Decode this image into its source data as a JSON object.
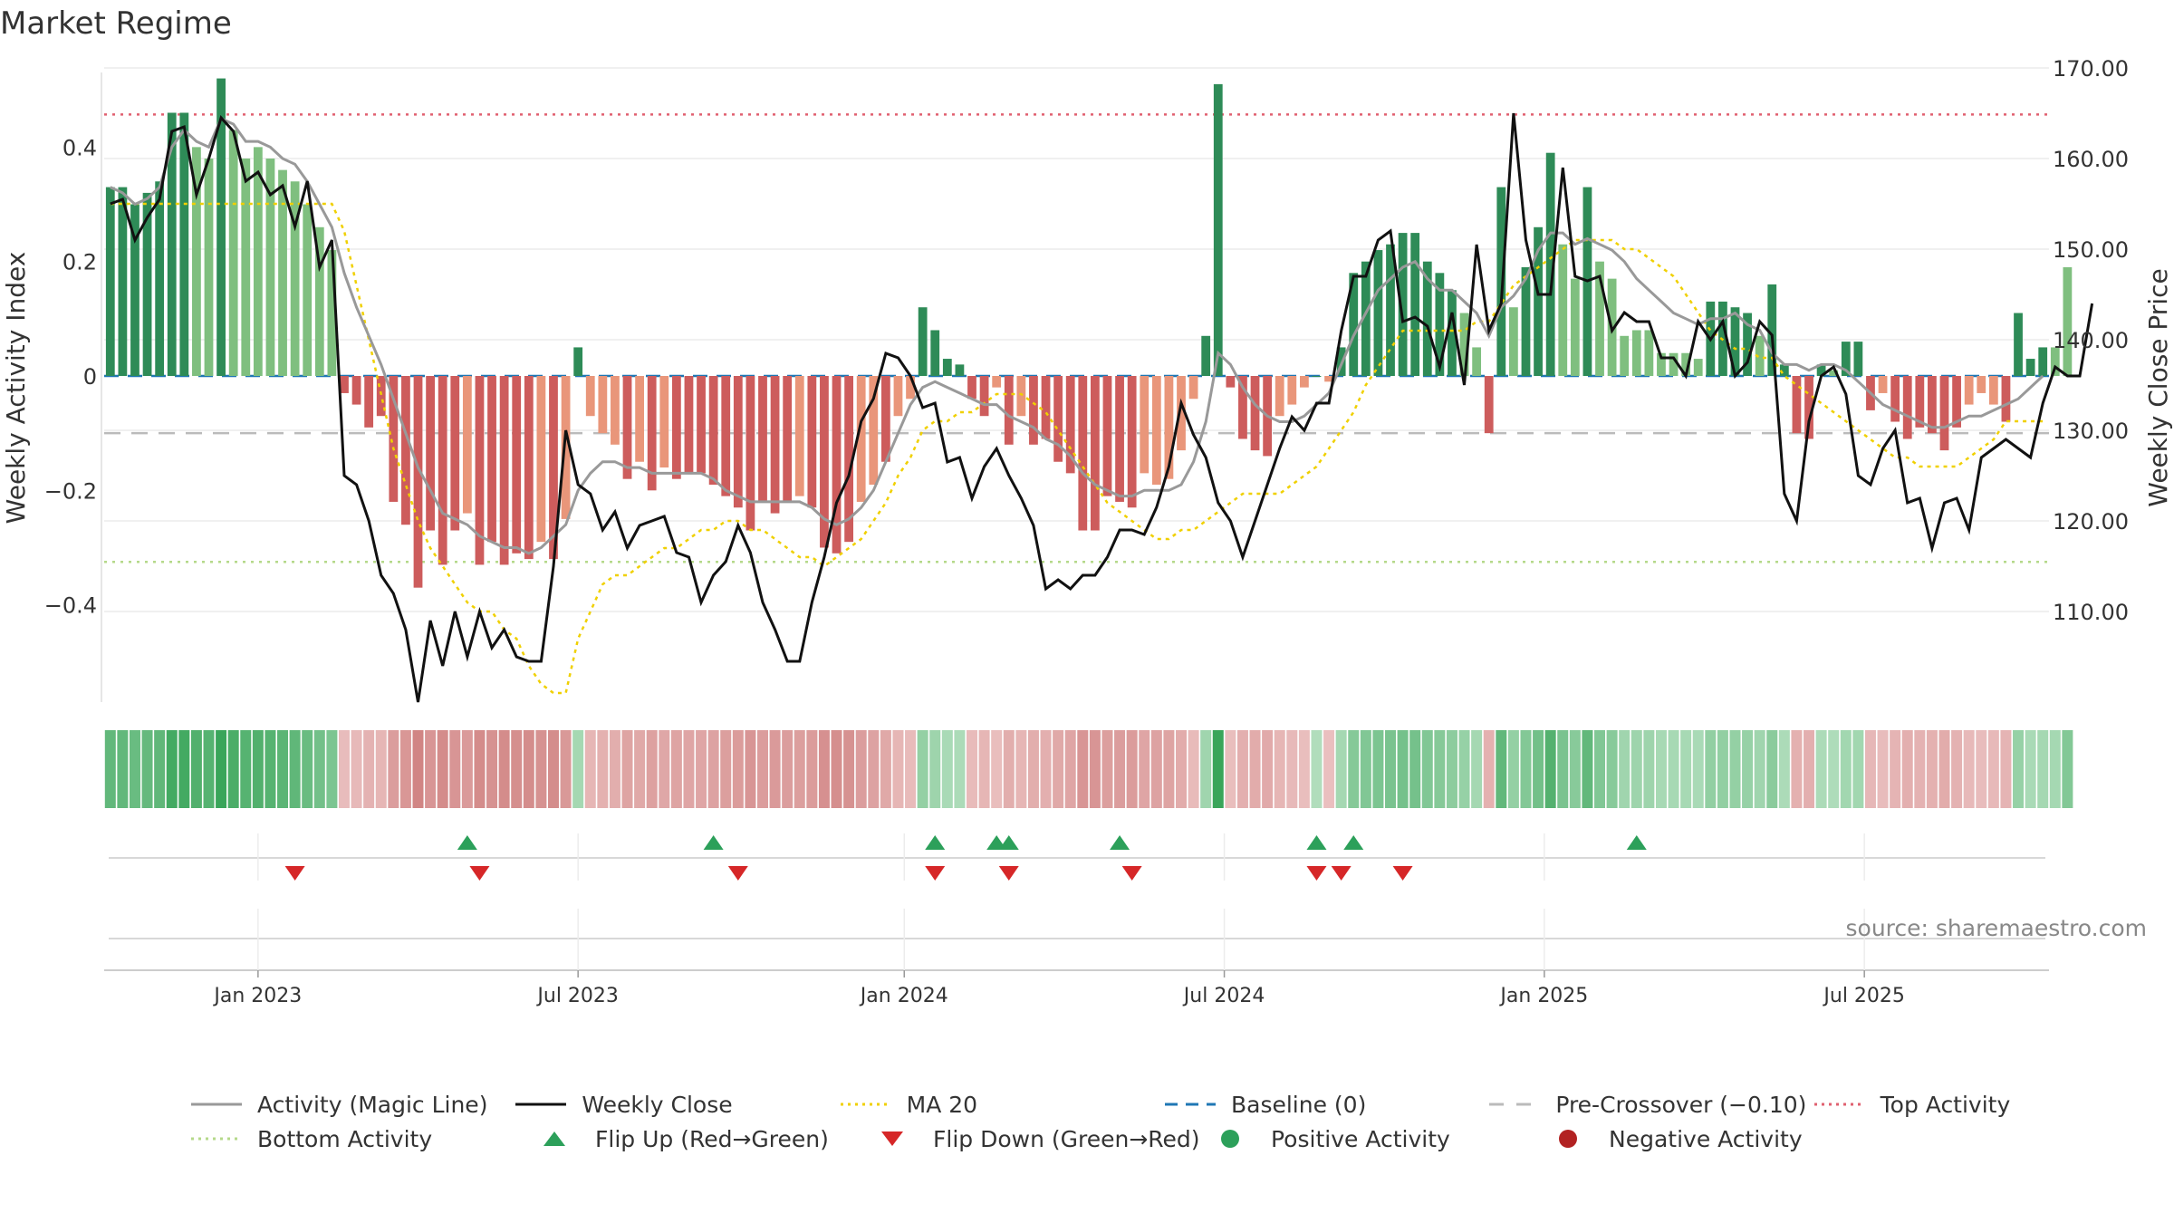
{
  "title": "Market Regime",
  "source": "source: sharemaestro.com",
  "colors": {
    "green_strong": "#2e8b57",
    "green_light": "#7fbf7f",
    "red_strong": "#cd5c5c",
    "red_light": "#e9967a",
    "magic_line": "#999999",
    "close": "#111111",
    "ma20": "#f0d000",
    "baseline": "#1f77b4",
    "precross": "#bbbbbb",
    "top": "#e06070",
    "bottom": "#b5d98a",
    "flip_up": "#2ca05a",
    "flip_down": "#d62728"
  },
  "chart_data": {
    "type": "bar",
    "title": "Market Regime",
    "ylabel_left": "Weekly Activity Index",
    "ylabel_right": "Weekly Close Price",
    "ylim_left": [
      -0.57,
      0.57
    ],
    "ylim_right": [
      100,
      172
    ],
    "yticks_left": [
      0.4,
      0.2,
      0,
      -0.2,
      -0.4
    ],
    "ytick_labels_left": [
      "0.4",
      "0.2",
      "0",
      "−0.2",
      "−0.4"
    ],
    "yticks_right": [
      170,
      160,
      150,
      140,
      130,
      120,
      110
    ],
    "ytick_labels_right": [
      "170.00",
      "160.00",
      "150.00",
      "140.00",
      "130.00",
      "120.00",
      "110.00"
    ],
    "x_start": "2022-10-09",
    "week_count": 158,
    "xtick_labels": [
      "Jan 2023",
      "Jul 2023",
      "Jan 2024",
      "Jul 2024",
      "Jan 2025",
      "Jul 2025"
    ],
    "xtick_weeks": [
      12,
      38,
      64.5,
      90.5,
      116.5,
      142.5
    ],
    "reference_lines": {
      "top_activity": 0.457,
      "bottom_activity": -0.325,
      "pre_crossover": -0.1,
      "baseline": 0
    },
    "activity": [
      0.33,
      0.33,
      0.3,
      0.32,
      0.34,
      0.46,
      0.46,
      0.4,
      0.38,
      0.52,
      0.43,
      0.38,
      0.4,
      0.38,
      0.36,
      0.34,
      0.3,
      0.26,
      0.22,
      -0.03,
      -0.05,
      -0.09,
      -0.07,
      -0.22,
      -0.26,
      -0.37,
      -0.27,
      -0.33,
      -0.27,
      -0.24,
      -0.33,
      -0.29,
      -0.33,
      -0.31,
      -0.32,
      -0.29,
      -0.32,
      -0.25,
      0.05,
      -0.07,
      -0.1,
      -0.12,
      -0.18,
      -0.15,
      -0.2,
      -0.16,
      -0.18,
      -0.17,
      -0.17,
      -0.19,
      -0.21,
      -0.23,
      -0.27,
      -0.22,
      -0.24,
      -0.22,
      -0.21,
      -0.23,
      -0.3,
      -0.31,
      -0.29,
      -0.22,
      -0.19,
      -0.15,
      -0.07,
      -0.04,
      0.12,
      0.08,
      0.03,
      0.02,
      -0.04,
      -0.07,
      -0.02,
      -0.12,
      -0.07,
      -0.12,
      -0.11,
      -0.15,
      -0.17,
      -0.27,
      -0.27,
      -0.21,
      -0.22,
      -0.23,
      -0.17,
      -0.19,
      -0.18,
      -0.13,
      -0.04,
      0.07,
      0.51,
      -0.02,
      -0.11,
      -0.13,
      -0.14,
      -0.07,
      -0.05,
      -0.02,
      0.0,
      -0.01,
      0.05,
      0.18,
      0.2,
      0.22,
      0.23,
      0.25,
      0.25,
      0.2,
      0.18,
      0.15,
      0.11,
      0.05,
      -0.1,
      0.33,
      0.12,
      0.19,
      0.26,
      0.39,
      0.23,
      0.17,
      0.33,
      0.2,
      0.17,
      0.07,
      0.08,
      0.08,
      0.04,
      0.04,
      0.04,
      0.03,
      0.13,
      0.13,
      0.12,
      0.11,
      0.07,
      0.16,
      0.02,
      -0.1,
      -0.11,
      0.02,
      0.01,
      0.06,
      0.06,
      -0.06,
      -0.03,
      -0.08,
      -0.11,
      -0.09,
      -0.1,
      -0.13,
      -0.09,
      -0.05,
      -0.03,
      -0.05,
      -0.08,
      0.11,
      0.03,
      0.05,
      0.05,
      0.19
    ],
    "magic_line": [
      0.33,
      0.32,
      0.3,
      0.31,
      0.33,
      0.4,
      0.43,
      0.41,
      0.4,
      0.45,
      0.44,
      0.41,
      0.41,
      0.4,
      0.38,
      0.37,
      0.34,
      0.3,
      0.26,
      0.18,
      0.12,
      0.07,
      0.02,
      -0.04,
      -0.1,
      -0.16,
      -0.2,
      -0.24,
      -0.25,
      -0.26,
      -0.28,
      -0.29,
      -0.3,
      -0.3,
      -0.31,
      -0.3,
      -0.28,
      -0.26,
      -0.2,
      -0.17,
      -0.15,
      -0.15,
      -0.16,
      -0.16,
      -0.17,
      -0.17,
      -0.17,
      -0.17,
      -0.17,
      -0.18,
      -0.2,
      -0.21,
      -0.22,
      -0.22,
      -0.22,
      -0.22,
      -0.22,
      -0.23,
      -0.25,
      -0.26,
      -0.25,
      -0.23,
      -0.2,
      -0.15,
      -0.1,
      -0.05,
      -0.02,
      -0.01,
      -0.02,
      -0.03,
      -0.04,
      -0.05,
      -0.05,
      -0.07,
      -0.08,
      -0.09,
      -0.11,
      -0.12,
      -0.14,
      -0.17,
      -0.19,
      -0.2,
      -0.21,
      -0.21,
      -0.2,
      -0.2,
      -0.2,
      -0.19,
      -0.15,
      -0.08,
      0.04,
      0.02,
      -0.02,
      -0.05,
      -0.07,
      -0.08,
      -0.08,
      -0.07,
      -0.05,
      -0.03,
      0.02,
      0.07,
      0.11,
      0.15,
      0.17,
      0.19,
      0.2,
      0.17,
      0.15,
      0.15,
      0.13,
      0.11,
      0.07,
      0.12,
      0.14,
      0.17,
      0.22,
      0.25,
      0.25,
      0.23,
      0.24,
      0.23,
      0.22,
      0.2,
      0.17,
      0.15,
      0.13,
      0.11,
      0.1,
      0.09,
      0.1,
      0.1,
      0.11,
      0.09,
      0.08,
      0.04,
      0.02,
      0.02,
      0.01,
      0.02,
      0.02,
      0.01,
      -0.01,
      -0.03,
      -0.05,
      -0.06,
      -0.07,
      -0.08,
      -0.09,
      -0.09,
      -0.08,
      -0.07,
      -0.07,
      -0.06,
      -0.05,
      -0.04,
      -0.02,
      0.0
    ],
    "weekly_close": [
      155,
      155.5,
      151,
      153.5,
      155.5,
      163,
      163.5,
      156,
      160,
      164.5,
      163,
      157.5,
      158.5,
      156,
      157,
      152.5,
      157.5,
      148,
      151,
      125,
      124,
      120,
      114,
      112,
      108,
      100,
      109,
      104,
      110,
      105,
      110,
      106,
      108,
      105,
      104.5,
      104.5,
      115,
      130,
      124,
      123,
      119,
      121,
      117,
      119.5,
      120,
      120.5,
      116.5,
      116,
      111,
      114,
      115.5,
      119.5,
      116.5,
      111,
      108,
      104.5,
      104.5,
      111,
      116,
      122,
      125,
      131,
      133.5,
      138.5,
      138,
      136,
      132.5,
      133,
      126.5,
      127,
      122.5,
      126,
      128,
      125,
      122.5,
      119.5,
      112.5,
      113.5,
      112.5,
      114,
      114,
      116,
      119,
      119,
      118.5,
      121.5,
      126,
      133,
      129.5,
      127,
      122,
      120,
      116,
      120,
      124,
      128,
      131.5,
      130,
      133,
      133,
      141,
      147,
      147,
      151,
      152,
      142,
      142.5,
      141.5,
      137,
      143,
      135,
      150.5,
      141,
      144,
      165,
      151,
      145,
      145,
      159,
      147,
      146.5,
      147,
      141,
      143,
      142,
      142,
      138,
      138,
      136,
      142,
      140,
      142,
      136,
      137.5,
      142,
      140.5,
      123,
      120,
      131,
      136,
      137,
      134,
      125,
      124,
      128,
      130,
      122,
      122.5,
      117,
      122,
      122.5,
      119,
      127,
      128,
      129,
      128,
      127,
      133,
      137,
      136,
      136,
      144
    ],
    "ma20": [
      155,
      155,
      155,
      155,
      155,
      155,
      155,
      155,
      155,
      155,
      155,
      155,
      155,
      155,
      155,
      155,
      155,
      155,
      155,
      152,
      146,
      140,
      134,
      128,
      124,
      120,
      117,
      115,
      113,
      111,
      110,
      110,
      108,
      107,
      104,
      102,
      101,
      101,
      107,
      110,
      113,
      114,
      114,
      115,
      116,
      117,
      117,
      118,
      119,
      119,
      120,
      120,
      119,
      119,
      118,
      117,
      116,
      116,
      115,
      116,
      117,
      118,
      120,
      122,
      125,
      127,
      130,
      131,
      131,
      132,
      132,
      133,
      134,
      134,
      134,
      133,
      132,
      130,
      128,
      126,
      124,
      122,
      121,
      120,
      119,
      118,
      118,
      119,
      119,
      120,
      121,
      122,
      123,
      123,
      123,
      123,
      124,
      125,
      126,
      128,
      130,
      132,
      135,
      137,
      139,
      141,
      141,
      141,
      141,
      141,
      141,
      142,
      142,
      144,
      146,
      147,
      148,
      149,
      150,
      151,
      151,
      151,
      151,
      150,
      150,
      149,
      148,
      147,
      145,
      143,
      141,
      140,
      139,
      139,
      138,
      138,
      136,
      135,
      134,
      133,
      132,
      131,
      130,
      129,
      128,
      127,
      127,
      126,
      126,
      126,
      126,
      127,
      128,
      129,
      131,
      131,
      131,
      131
    ],
    "flip_up_weeks": [
      29,
      49,
      67,
      72,
      73,
      82,
      98,
      101,
      124
    ],
    "flip_down_weeks": [
      15,
      30,
      51,
      67,
      73,
      83,
      98,
      100,
      105
    ],
    "positive_activity_weeks": [],
    "negative_activity_weeks": []
  },
  "legend": [
    {
      "label": "Activity (Magic Line)",
      "style": "solid",
      "color": "#999999"
    },
    {
      "label": "Weekly Close",
      "style": "solid",
      "color": "#111111"
    },
    {
      "label": "MA 20",
      "style": "dotted",
      "color": "#f0d000"
    },
    {
      "label": "Baseline (0)",
      "style": "dashed",
      "color": "#1f77b4"
    },
    {
      "label": "Pre-Crossover (−0.10)",
      "style": "dashed-wide",
      "color": "#bbbbbb"
    },
    {
      "label": "Top Activity",
      "style": "dotted",
      "color": "#e06070"
    },
    {
      "label": "Bottom Activity",
      "style": "dotted",
      "color": "#b5d98a"
    },
    {
      "label": "Flip Up (Red→Green)",
      "style": "tri-up",
      "color": "#2ca05a"
    },
    {
      "label": "Flip Down (Green→Red)",
      "style": "tri-down",
      "color": "#d62728"
    },
    {
      "label": "Positive Activity",
      "style": "dot",
      "color": "#2ca05a"
    },
    {
      "label": "Negative Activity",
      "style": "dot",
      "color": "#b22222"
    }
  ]
}
